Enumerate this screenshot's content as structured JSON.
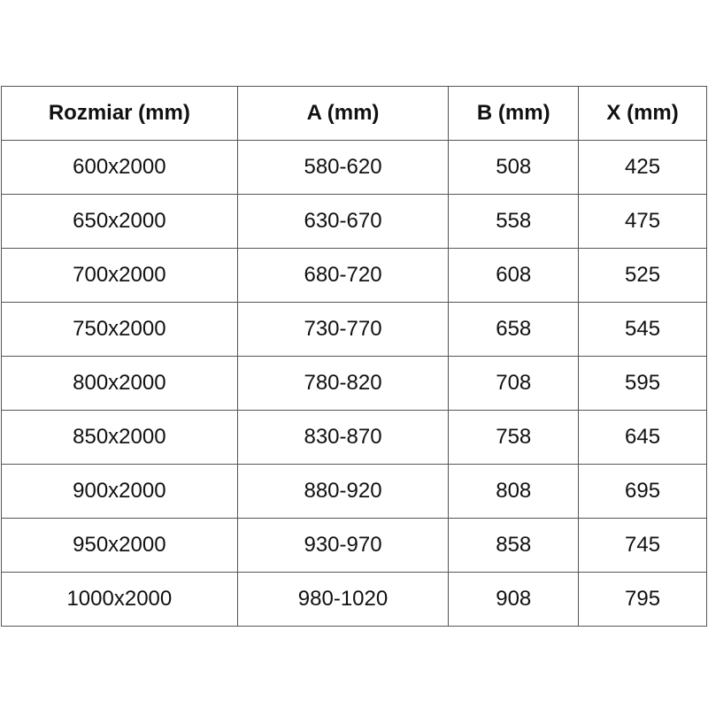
{
  "table": {
    "headers": [
      "Rozmiar (mm)",
      "A (mm)",
      "B (mm)",
      "X (mm)"
    ],
    "rows": [
      [
        "600x2000",
        "580-620",
        "508",
        "425"
      ],
      [
        "650x2000",
        "630-670",
        "558",
        "475"
      ],
      [
        "700x2000",
        "680-720",
        "608",
        "525"
      ],
      [
        "750x2000",
        "730-770",
        "658",
        "545"
      ],
      [
        "800x2000",
        "780-820",
        "708",
        "595"
      ],
      [
        "850x2000",
        "830-870",
        "758",
        "645"
      ],
      [
        "900x2000",
        "880-920",
        "808",
        "695"
      ],
      [
        "950x2000",
        "930-970",
        "858",
        "745"
      ],
      [
        "1000x2000",
        "980-1020",
        "908",
        "795"
      ]
    ]
  }
}
